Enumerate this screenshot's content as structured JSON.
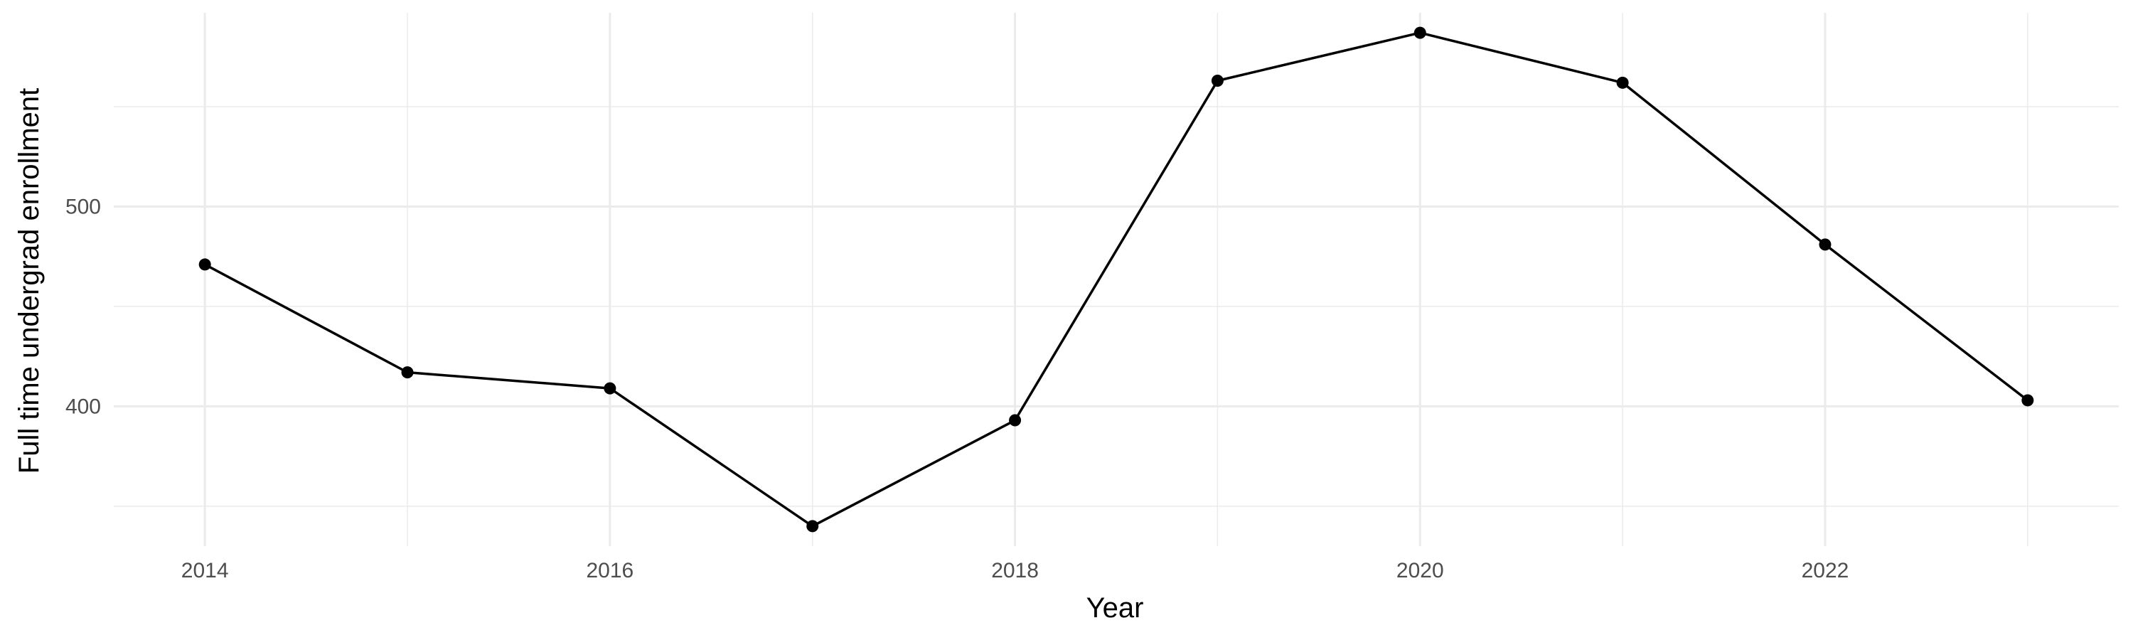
{
  "chart_data": {
    "type": "line",
    "title": "",
    "xlabel": "Year",
    "ylabel": "Full time undergrad enrollment",
    "x": [
      2014,
      2015,
      2016,
      2017,
      2018,
      2019,
      2020,
      2021,
      2022,
      2023
    ],
    "series": [
      {
        "values": [
          471,
          417,
          409,
          340,
          393,
          563,
          587,
          562,
          481,
          403
        ]
      }
    ],
    "x_ticks": [
      2014,
      2016,
      2018,
      2020,
      2022
    ],
    "x_tick_labels": [
      "2014",
      "2016",
      "2018",
      "2020",
      "2022"
    ],
    "y_ticks": [
      400,
      500
    ],
    "y_tick_labels": [
      "400",
      "500"
    ],
    "xlim": [
      2013.55,
      2023.45
    ],
    "ylim": [
      330,
      597
    ],
    "grid": true,
    "legend": "none",
    "colors": {
      "line": "#000000",
      "point": "#000000",
      "grid": "#ebebeb",
      "tick_text": "#4d4d4d"
    }
  }
}
